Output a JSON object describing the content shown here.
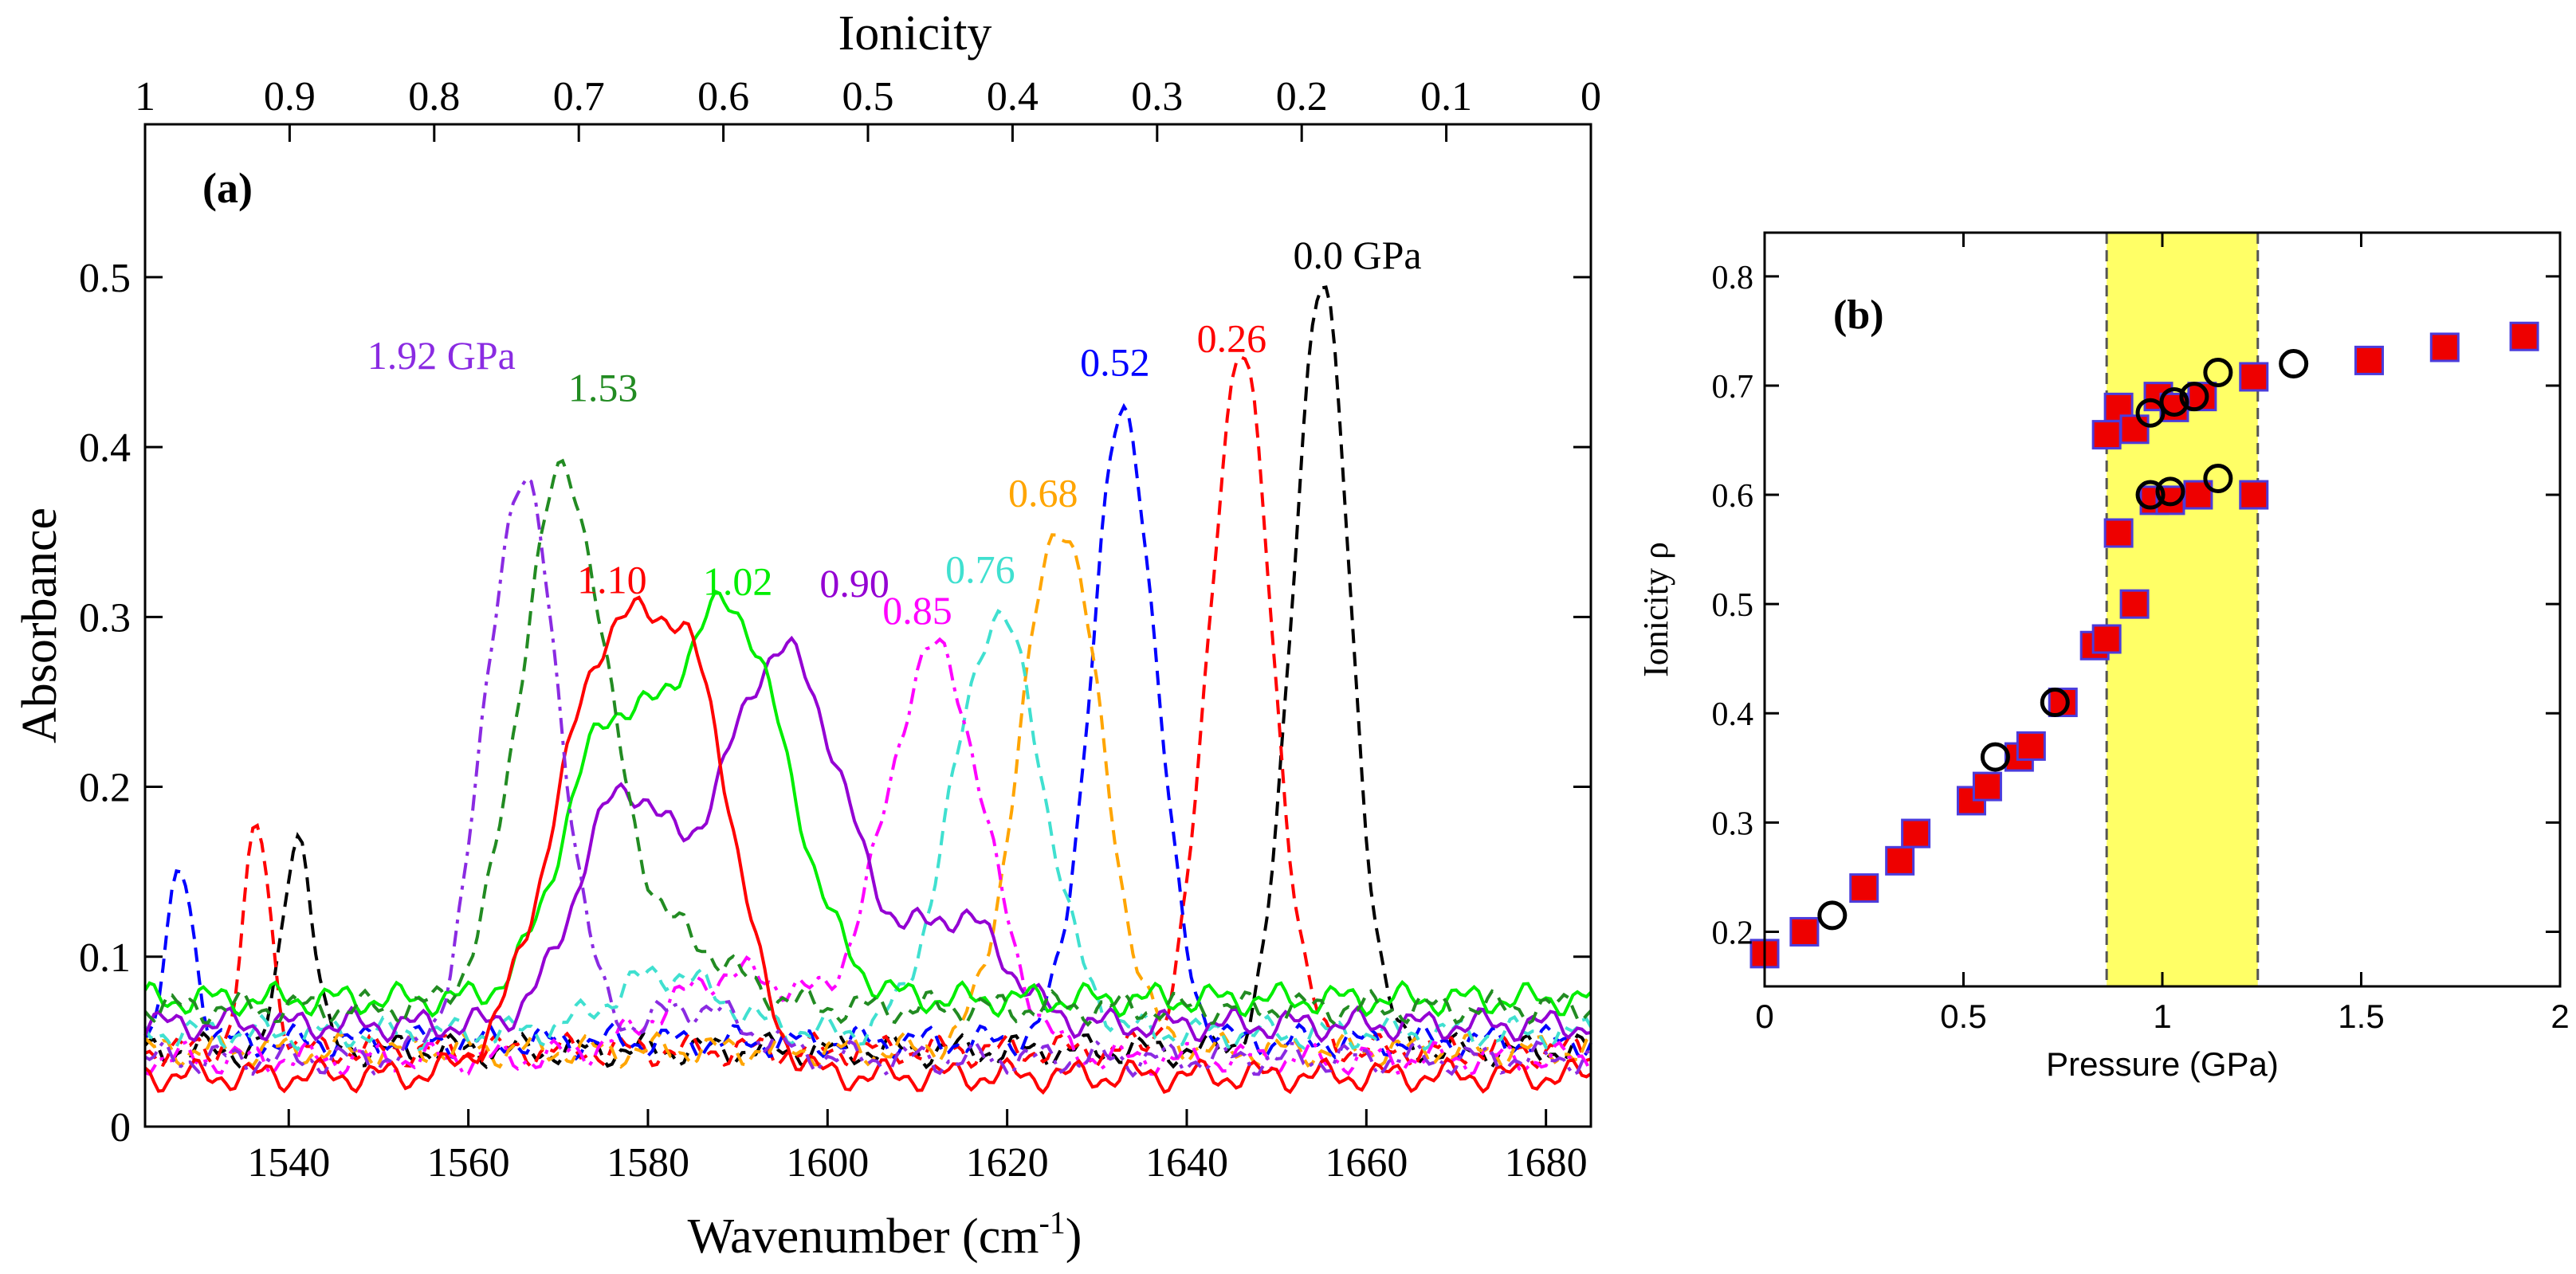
{
  "chart_data": [
    {
      "type": "line",
      "panel_label": "(a)",
      "title": "",
      "xlabel": "Wavenumber (cm",
      "xlabel_sup": "-1",
      "xlabel_close": ")",
      "ylabel": "Absorbance",
      "top_axis_label": "Ionicity",
      "xlim": [
        1524,
        1685
      ],
      "ylim": [
        0,
        0.59
      ],
      "x_ticks": [
        1540,
        1560,
        1580,
        1600,
        1620,
        1640,
        1660,
        1680
      ],
      "y_ticks": [
        0,
        0.1,
        0.2,
        0.3,
        0.4,
        0.5
      ],
      "y_tick_labels": [
        "0",
        "0.1",
        "0.2",
        "0.3",
        "0.4",
        "0.5"
      ],
      "top_ticks": [
        {
          "label": "1",
          "x": 1524
        },
        {
          "label": "0.9",
          "x": 1540.1
        },
        {
          "label": "0.8",
          "x": 1556.2
        },
        {
          "label": "0.7",
          "x": 1572.3
        },
        {
          "label": "0.6",
          "x": 1588.4
        },
        {
          "label": "0.5",
          "x": 1604.5
        },
        {
          "label": "0.4",
          "x": 1620.6
        },
        {
          "label": "0.3",
          "x": 1636.7
        },
        {
          "label": "0.2",
          "x": 1652.8
        },
        {
          "label": "0.1",
          "x": 1668.9
        },
        {
          "label": "0",
          "x": 1685
        }
      ],
      "series": [
        {
          "name": "0.0 GPa",
          "label": "0.0 GPa",
          "color": "#000000",
          "style": "dashed",
          "peaks": [
            [
              1655,
              0.45,
              3.2
            ],
            [
              1541,
              0.13,
              1.6
            ]
          ],
          "baseline": 0.045,
          "label_pos": [
            1659,
            0.505
          ]
        },
        {
          "name": "0.26",
          "label": "0.26",
          "color": "#ff0000",
          "style": "dashed",
          "peaks": [
            [
              1646,
              0.41,
              3.5
            ],
            [
              1536.5,
              0.13,
              1.5
            ]
          ],
          "baseline": 0.045,
          "label_pos": [
            1645,
            0.456
          ]
        },
        {
          "name": "0.52",
          "label": "0.52",
          "color": "#0000ff",
          "style": "dashed",
          "peaks": [
            [
              1633,
              0.37,
              3.6
            ],
            [
              1528,
              0.1,
              1.5
            ]
          ],
          "baseline": 0.05,
          "label_pos": [
            1632,
            0.442
          ]
        },
        {
          "name": "0.68",
          "label": "0.68",
          "color": "#ffa500",
          "style": "dashed",
          "peaks": [
            [
              1626,
              0.31,
              4.5
            ]
          ],
          "baseline": 0.045,
          "label_pos": [
            1624,
            0.365
          ]
        },
        {
          "name": "0.76",
          "label": "0.76",
          "color": "#40e0d0",
          "style": "dashed",
          "peaks": [
            [
              1619,
              0.245,
              5.0
            ],
            [
              1582,
              0.035,
              6
            ]
          ],
          "baseline": 0.055,
          "label_pos": [
            1617,
            0.32
          ]
        },
        {
          "name": "0.85",
          "label": "0.85",
          "color": "#ff00ff",
          "style": "dashdot",
          "peaks": [
            [
              1612,
              0.24,
              5.5
            ],
            [
              1590,
              0.05,
              8
            ]
          ],
          "baseline": 0.04,
          "label_pos": [
            1610,
            0.296
          ]
        },
        {
          "name": "0.90",
          "label": "0.90",
          "color": "#9400d3",
          "style": "solid",
          "peaks": [
            [
              1595,
              0.22,
              7
            ],
            [
              1577,
              0.13,
              5
            ],
            [
              1615,
              0.06,
              5
            ]
          ],
          "baseline": 0.06,
          "label_pos": [
            1603,
            0.312
          ]
        },
        {
          "name": "1.02",
          "label": "1.02",
          "color": "#00ee00",
          "style": "solid",
          "peaks": [
            [
              1589,
              0.23,
              6.5
            ],
            [
              1575,
              0.14,
              5
            ]
          ],
          "baseline": 0.075,
          "label_pos": [
            1590,
            0.313
          ]
        },
        {
          "name": "1.10",
          "label": "1.10",
          "color": "#ff0000",
          "style": "solid",
          "peaks": [
            [
              1576,
              0.25,
              6.5
            ],
            [
              1586,
              0.16,
              4.5
            ]
          ],
          "baseline": 0.03,
          "label_pos": [
            1576,
            0.314
          ]
        },
        {
          "name": "1.53",
          "label": "1.53",
          "color": "#228b22",
          "style": "dashed",
          "peaks": [
            [
              1570.5,
              0.31,
              4.8
            ],
            [
              1583,
              0.04,
              6
            ]
          ],
          "baseline": 0.07,
          "label_pos": [
            1575,
            0.427
          ]
        },
        {
          "name": "1.92 GPa",
          "label": "1.92 GPa",
          "color": "#8a2be2",
          "style": "dashdot",
          "peaks": [
            [
              1566,
              0.34,
              4.2
            ],
            [
              1585,
              0.03,
              6
            ]
          ],
          "baseline": 0.04,
          "label_pos": [
            1557,
            0.446
          ]
        }
      ]
    },
    {
      "type": "scatter",
      "panel_label": "(b)",
      "title": "",
      "xlabel": "Pressure (GPa)",
      "ylabel": "Ionicity ρ",
      "xlim": [
        0,
        2
      ],
      "ylim": [
        0.15,
        0.84
      ],
      "x_ticks": [
        0,
        0.5,
        1,
        1.5,
        2
      ],
      "x_tick_labels": [
        "0",
        "0.5",
        "1",
        "1.5",
        "2"
      ],
      "y_ticks": [
        0.2,
        0.3,
        0.4,
        0.5,
        0.6,
        0.7,
        0.8
      ],
      "y_tick_labels": [
        "0.2",
        "0.3",
        "0.4",
        "0.5",
        "0.6",
        "0.7",
        "0.8"
      ],
      "shaded_region": {
        "x_range": [
          0.86,
          1.24
        ],
        "color": "#ffff66"
      },
      "series": [
        {
          "name": "squares",
          "marker": "square",
          "color": "#ee0000",
          "edge": "#4b3cdc",
          "points": [
            [
              0,
              0.18
            ],
            [
              0.1,
              0.2
            ],
            [
              0.25,
              0.24
            ],
            [
              0.34,
              0.265
            ],
            [
              0.38,
              0.29
            ],
            [
              0.52,
              0.32
            ],
            [
              0.56,
              0.333
            ],
            [
              0.64,
              0.36
            ],
            [
              0.67,
              0.37
            ],
            [
              0.75,
              0.41
            ],
            [
              0.83,
              0.462
            ],
            [
              0.86,
              0.468
            ],
            [
              0.93,
              0.5
            ],
            [
              0.89,
              0.565
            ],
            [
              0.98,
              0.595
            ],
            [
              1.02,
              0.595
            ],
            [
              1.09,
              0.6
            ],
            [
              1.23,
              0.6
            ],
            [
              0.86,
              0.655
            ],
            [
              0.89,
              0.68
            ],
            [
              0.93,
              0.66
            ],
            [
              0.99,
              0.69
            ],
            [
              1.03,
              0.68
            ],
            [
              1.1,
              0.69
            ],
            [
              1.23,
              0.708
            ],
            [
              1.52,
              0.723
            ],
            [
              1.71,
              0.735
            ],
            [
              1.91,
              0.745
            ]
          ]
        },
        {
          "name": "circles",
          "marker": "circle",
          "color": "#000000",
          "edge": "#000000",
          "points": [
            [
              0.17,
              0.215
            ],
            [
              0.58,
              0.36
            ],
            [
              0.73,
              0.41
            ],
            [
              0.97,
              0.6
            ],
            [
              1.02,
              0.603
            ],
            [
              1.14,
              0.615
            ],
            [
              0.97,
              0.675
            ],
            [
              1.03,
              0.685
            ],
            [
              1.08,
              0.69
            ],
            [
              1.14,
              0.712
            ],
            [
              1.33,
              0.72
            ]
          ]
        }
      ]
    }
  ]
}
